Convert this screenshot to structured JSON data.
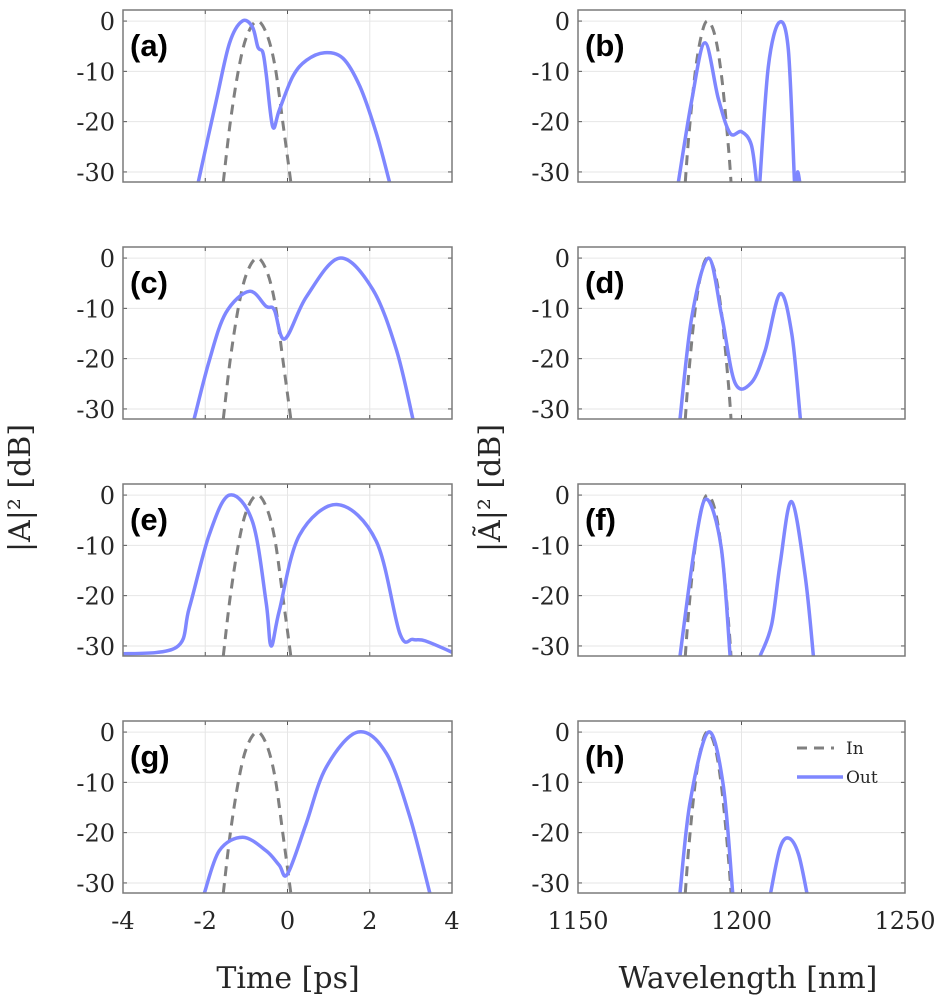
{
  "chart_data": {
    "type": "line",
    "colors": {
      "in": "#808080",
      "out": "#7f87ff",
      "grid": "#e6e6e6",
      "axis": "#7a7a7a"
    },
    "legend": {
      "entries": [
        "In",
        "Out"
      ],
      "placement": "top-right of panel (h)"
    },
    "time_axis": {
      "xlabel": "Time [ps]",
      "ylabel": "|A|² [dB]",
      "xlim": [
        -4,
        4
      ],
      "ylim": [
        -32,
        2.2
      ],
      "xticks": [
        -4,
        -2,
        0,
        2,
        4
      ],
      "xtick_labels": [
        "-4",
        "-2",
        "0",
        "2",
        "4"
      ]
    },
    "wavelength_axis": {
      "xlabel": "Wavelength [nm]",
      "ylabel": "|Ã|² [dB]",
      "xlim": [
        1150,
        1250
      ],
      "ylim": [
        -32,
        2.2
      ],
      "xticks": [
        1150,
        1200,
        1250
      ],
      "xtick_labels": [
        "1150",
        "1200",
        "1250"
      ]
    },
    "yticks": [
      0,
      -10,
      -20,
      -30
    ],
    "ytick_labels": [
      "0",
      "-10",
      "-20",
      "-30"
    ],
    "input_time": [
      [
        -1.56,
        -32
      ],
      [
        -1.4,
        -20.7
      ],
      [
        -1.2,
        -10.1
      ],
      [
        -1.0,
        -3.2
      ],
      [
        -0.74,
        0
      ],
      [
        -0.5,
        -2.7
      ],
      [
        -0.3,
        -9.2
      ],
      [
        -0.1,
        -21
      ],
      [
        0.08,
        -32
      ]
    ],
    "input_spectrum": [
      [
        1182.8,
        -32
      ],
      [
        1184,
        -22
      ],
      [
        1186,
        -9.4
      ],
      [
        1188,
        -2.1
      ],
      [
        1189.8,
        0
      ],
      [
        1192,
        -3.2
      ],
      [
        1194,
        -11.5
      ],
      [
        1196,
        -25
      ],
      [
        1196.8,
        -32
      ]
    ],
    "panels": [
      {
        "label": "(a)",
        "domain": "time",
        "row": 0,
        "col": 0,
        "out": [
          [
            [
              -2.17,
              -32
            ],
            [
              -1.73,
              -15.7
            ],
            [
              -1.41,
              -4.4
            ],
            [
              -1.1,
              0
            ],
            [
              -0.85,
              -1.2
            ],
            [
              -0.72,
              -5.2
            ],
            [
              -0.6,
              -6.2
            ],
            [
              -0.52,
              -10.4
            ],
            [
              -0.36,
              -21
            ],
            [
              -0.2,
              -17.7
            ],
            [
              0.13,
              -11
            ],
            [
              0.46,
              -7.8
            ],
            [
              0.9,
              -6.3
            ],
            [
              1.35,
              -7.4
            ],
            [
              1.76,
              -13
            ],
            [
              2.16,
              -22.3
            ],
            [
              2.48,
              -32
            ]
          ]
        ]
      },
      {
        "label": "(b)",
        "domain": "wavelength",
        "row": 0,
        "col": 1,
        "out": [
          [
            [
              1180.7,
              -32
            ],
            [
              1184.8,
              -15.7
            ],
            [
              1188.8,
              -4.3
            ],
            [
              1192.9,
              -15.4
            ],
            [
              1196.5,
              -22.3
            ],
            [
              1200,
              -22
            ],
            [
              1203,
              -24.6
            ],
            [
              1204.6,
              -32
            ]
          ],
          [
            [
              1205.6,
              -32
            ],
            [
              1208.2,
              -9.1
            ],
            [
              1211.5,
              -0.3
            ],
            [
              1214.3,
              -5.6
            ],
            [
              1216.2,
              -32
            ]
          ],
          [
            [
              1216.8,
              -32
            ],
            [
              1217.2,
              -30
            ],
            [
              1217.8,
              -32
            ]
          ]
        ]
      },
      {
        "label": "(c)",
        "domain": "time",
        "row": 1,
        "col": 0,
        "out": [
          [
            [
              -2.27,
              -32
            ],
            [
              -1.9,
              -20.3
            ],
            [
              -1.5,
              -10.9
            ],
            [
              -0.93,
              -6.6
            ],
            [
              -0.52,
              -9.6
            ],
            [
              -0.32,
              -10.3
            ],
            [
              -0.07,
              -16.1
            ],
            [
              0.46,
              -7.7
            ],
            [
              1.27,
              0
            ],
            [
              2.07,
              -6.2
            ],
            [
              2.65,
              -18.3
            ],
            [
              3.05,
              -32
            ]
          ]
        ]
      },
      {
        "label": "(d)",
        "domain": "wavelength",
        "row": 1,
        "col": 1,
        "out": [
          [
            [
              1181.2,
              -32
            ],
            [
              1184.8,
              -11.7
            ],
            [
              1189.9,
              0
            ],
            [
              1194,
              -11.7
            ],
            [
              1198,
              -24.8
            ],
            [
              1203,
              -24.8
            ],
            [
              1207.2,
              -18.5
            ],
            [
              1211.8,
              -7.1
            ],
            [
              1215.4,
              -15.2
            ],
            [
              1218,
              -32
            ]
          ]
        ]
      },
      {
        "label": "(e)",
        "domain": "time",
        "row": 2,
        "col": 0,
        "out": [
          [
            [
              -4.1,
              -31.6
            ],
            [
              -2.71,
              -30.3
            ],
            [
              -2.39,
              -22.5
            ],
            [
              -1.9,
              -7.8
            ],
            [
              -1.41,
              0
            ],
            [
              -0.85,
              -5.3
            ],
            [
              -0.52,
              -21.3
            ],
            [
              -0.4,
              -30
            ],
            [
              -0.2,
              -23
            ],
            [
              0.29,
              -8
            ],
            [
              1.22,
              -1.9
            ],
            [
              2.16,
              -9.2
            ],
            [
              2.73,
              -27.5
            ],
            [
              3.05,
              -28.7
            ],
            [
              3.35,
              -29
            ],
            [
              4.1,
              -31.6
            ]
          ]
        ]
      },
      {
        "label": "(f)",
        "domain": "wavelength",
        "row": 2,
        "col": 1,
        "out": [
          [
            [
              1181.2,
              -32
            ],
            [
              1185.8,
              -9.8
            ],
            [
              1189.3,
              -0.8
            ],
            [
              1193.8,
              -10.4
            ],
            [
              1196.5,
              -32
            ]
          ],
          [
            [
              1205.7,
              -32
            ],
            [
              1209.2,
              -25.8
            ],
            [
              1211.8,
              -13.7
            ],
            [
              1215.3,
              -1.3
            ],
            [
              1219.4,
              -15.7
            ],
            [
              1222,
              -32
            ]
          ]
        ]
      },
      {
        "label": "(g)",
        "domain": "time",
        "row": 3,
        "col": 0,
        "out": [
          [
            [
              -2.02,
              -32
            ],
            [
              -1.66,
              -23.6
            ],
            [
              -1.09,
              -20.9
            ],
            [
              -0.52,
              -23.6
            ],
            [
              -0.2,
              -26.5
            ],
            [
              0,
              -28.2
            ],
            [
              0.45,
              -18.3
            ],
            [
              0.94,
              -7
            ],
            [
              1.71,
              0
            ],
            [
              2.41,
              -4.3
            ],
            [
              2.98,
              -17
            ],
            [
              3.46,
              -32
            ]
          ]
        ]
      },
      {
        "label": "(h)",
        "domain": "wavelength",
        "row": 3,
        "col": 1,
        "out": [
          [
            [
              1181.2,
              -32
            ],
            [
              1184.3,
              -13.8
            ],
            [
              1189.9,
              0
            ],
            [
              1194.4,
              -10.5
            ],
            [
              1197.3,
              -32
            ]
          ],
          [
            [
              1208.9,
              -32
            ],
            [
              1211.8,
              -23
            ],
            [
              1214.5,
              -21.1
            ],
            [
              1217.4,
              -24.2
            ],
            [
              1220,
              -32
            ]
          ]
        ]
      }
    ]
  }
}
